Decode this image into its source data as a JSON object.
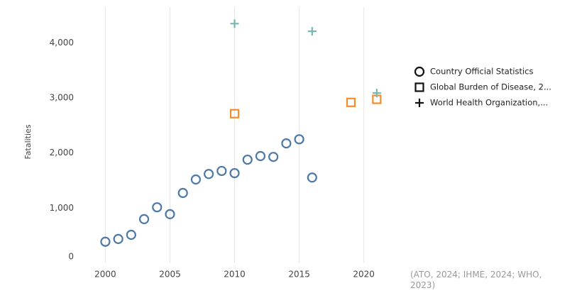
{
  "chart_data": {
    "type": "scatter",
    "y_label": "Fatalities",
    "xlim": [
      1998,
      2022.6
    ],
    "xticks": [
      2000,
      2005,
      2010,
      2015,
      2020
    ],
    "ylim": [
      0,
      4650
    ],
    "yticks": [
      0,
      {
        "value": 1000,
        "label": "1,000"
      },
      {
        "value": 2000,
        "label": "2,000"
      },
      {
        "value": 3000,
        "label": "3,000"
      },
      {
        "value": 4000,
        "label": "4,000"
      }
    ],
    "grid": "x",
    "legend": "right",
    "series": [
      {
        "name": "Country Official Statistics",
        "marker": "circle",
        "color": "#4e79a7",
        "x": [
          2000,
          2001,
          2002,
          2003,
          2004,
          2005,
          2006,
          2007,
          2008,
          2009,
          2010,
          2011,
          2012,
          2013,
          2014,
          2015,
          2016
        ],
        "values": [
          390,
          440,
          515,
          800,
          1015,
          890,
          1275,
          1520,
          1620,
          1675,
          1635,
          1880,
          1945,
          1930,
          2175,
          2250,
          1555
        ]
      },
      {
        "name": "Global Burden of Disease, 2...",
        "marker": "square",
        "color": "#f28e2b",
        "x": [
          2010,
          2019,
          2021
        ],
        "values": [
          2715,
          2920,
          2975
        ]
      },
      {
        "name": "World Health Organization,...",
        "marker": "plus",
        "color": "#76b7b2",
        "x": [
          2010,
          2016,
          2021
        ],
        "values": [
          4350,
          4210,
          3090
        ]
      }
    ],
    "source": "(ATO, 2024; IHME, 2024; WHO, 2023)"
  }
}
